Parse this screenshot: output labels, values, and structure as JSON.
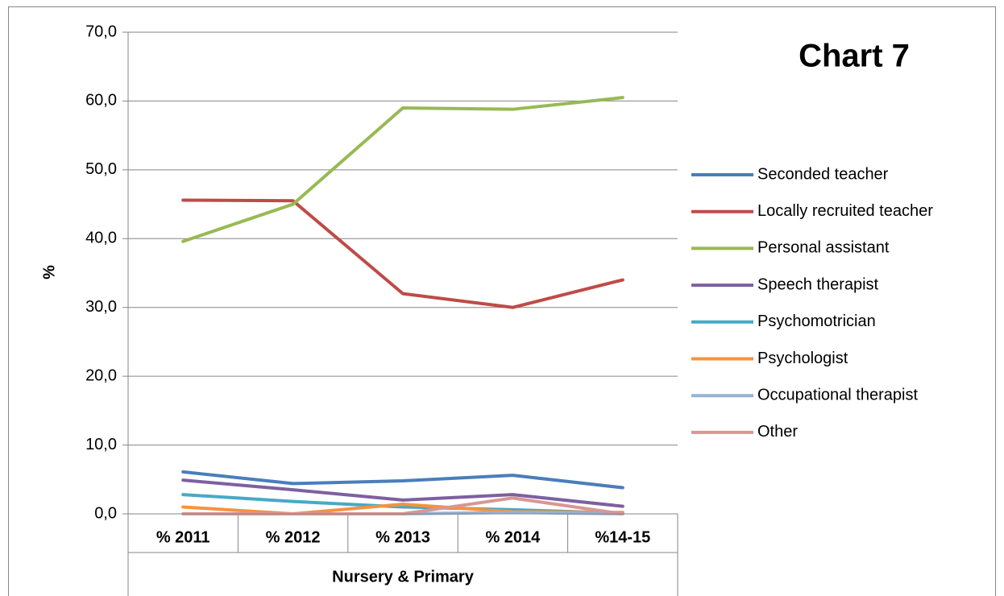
{
  "chart_data": {
    "type": "line",
    "title": "Chart 7",
    "ylabel": "%",
    "xlabel": "Nursery & Primary",
    "categories": [
      "% 2011",
      "% 2012",
      "% 2013",
      "% 2014",
      "%14-15"
    ],
    "ylim": [
      0,
      70
    ],
    "yticks": [
      {
        "value": 0,
        "label": "0,0"
      },
      {
        "value": 10,
        "label": "10,0"
      },
      {
        "value": 20,
        "label": "20,0"
      },
      {
        "value": 30,
        "label": "30,0"
      },
      {
        "value": 40,
        "label": "40,0"
      },
      {
        "value": 50,
        "label": "50,0"
      },
      {
        "value": 60,
        "label": "60,0"
      },
      {
        "value": 70,
        "label": "70,0"
      }
    ],
    "grid": true,
    "legend": "right",
    "series": [
      {
        "name": "Seconded teacher",
        "color": "#4a7ebb",
        "values": [
          6.1,
          4.4,
          4.8,
          5.6,
          3.8
        ]
      },
      {
        "name": "Locally recruited teacher",
        "color": "#be4b48",
        "values": [
          45.6,
          45.5,
          32.0,
          30.0,
          34.0
        ]
      },
      {
        "name": "Personal assistant",
        "color": "#98b954",
        "values": [
          39.6,
          45.0,
          59.0,
          58.8,
          60.5
        ]
      },
      {
        "name": "Speech therapist",
        "color": "#7d60a0",
        "values": [
          4.9,
          3.5,
          2.0,
          2.8,
          1.1
        ]
      },
      {
        "name": "Psychomotrician",
        "color": "#46aac5",
        "values": [
          2.8,
          1.8,
          1.0,
          0.6,
          0.1
        ]
      },
      {
        "name": "Psychologist",
        "color": "#f69240",
        "values": [
          1.0,
          0.0,
          1.4,
          0.3,
          0.2
        ]
      },
      {
        "name": "Occupational therapist",
        "color": "#95b3d7",
        "values": [
          0.0,
          0.0,
          0.0,
          0.2,
          0.0
        ]
      },
      {
        "name": "Other",
        "color": "#d99694",
        "values": [
          0.0,
          0.0,
          0.0,
          2.3,
          0.0
        ]
      }
    ]
  }
}
